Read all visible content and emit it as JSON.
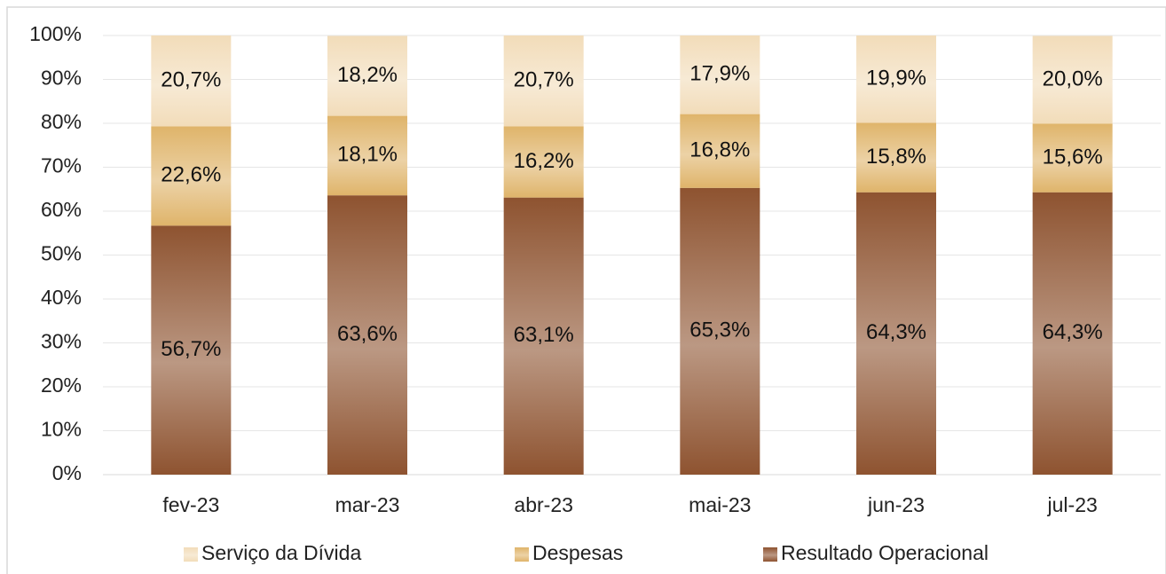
{
  "chart_data": {
    "type": "stacked_bar",
    "categories": [
      "fev-23",
      "mar-23",
      "abr-23",
      "mai-23",
      "jun-23",
      "jul-23"
    ],
    "series": [
      {
        "name": "Serviço da Dívida",
        "color": "#f2dcb9",
        "values": [
          20.7,
          18.2,
          20.7,
          17.9,
          19.9,
          20.0
        ],
        "value_labels": [
          "20,7%",
          "18,2%",
          "20,7%",
          "17,9%",
          "19,9%",
          "20,0%"
        ]
      },
      {
        "name": "Despesas",
        "color": "#dfb46a",
        "values": [
          22.6,
          18.1,
          16.2,
          16.8,
          15.8,
          15.6
        ],
        "value_labels": [
          "22,6%",
          "18,1%",
          "16,2%",
          "16,8%",
          "15,8%",
          "15,6%"
        ]
      },
      {
        "name": "Resultado Operacional",
        "color": "#8e5330",
        "values": [
          56.7,
          63.6,
          63.1,
          65.3,
          64.3,
          64.3
        ],
        "value_labels": [
          "56,7%",
          "63,6%",
          "63,1%",
          "65,3%",
          "64,3%",
          "64,3%"
        ]
      }
    ],
    "ylim": [
      0,
      100
    ],
    "yticks": [
      {
        "value": 0,
        "label": "0%"
      },
      {
        "value": 10,
        "label": "10%"
      },
      {
        "value": 20,
        "label": "20%"
      },
      {
        "value": 30,
        "label": "30%"
      },
      {
        "value": 40,
        "label": "40%"
      },
      {
        "value": 50,
        "label": "50%"
      },
      {
        "value": 60,
        "label": "60%"
      },
      {
        "value": 70,
        "label": "70%"
      },
      {
        "value": 80,
        "label": "80%"
      },
      {
        "value": 90,
        "label": "90%"
      },
      {
        "value": 100,
        "label": "100%"
      }
    ],
    "grid": true,
    "legend": "bottom"
  }
}
